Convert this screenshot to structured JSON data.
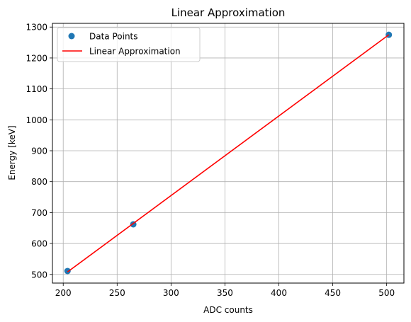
{
  "chart_data": {
    "type": "scatter",
    "title": "Linear Approximation",
    "xlabel": "ADC counts",
    "ylabel": "Energy [keV]",
    "xlim": [
      190,
      516
    ],
    "ylim": [
      472,
      1312
    ],
    "xticks": [
      200,
      250,
      300,
      350,
      400,
      450,
      500
    ],
    "yticks": [
      500,
      600,
      700,
      800,
      900,
      1000,
      1100,
      1200,
      1300
    ],
    "grid": true,
    "legend_position": "upper-left",
    "series": [
      {
        "name": "Data Points",
        "kind": "scatter",
        "color": "#1f77b4",
        "x": [
          204,
          265,
          502
        ],
        "y": [
          511,
          662,
          1275
        ]
      },
      {
        "name": "Linear Approximation",
        "kind": "line",
        "color": "#ff0000",
        "x": [
          204,
          502
        ],
        "y": [
          508,
          1275
        ]
      }
    ]
  }
}
